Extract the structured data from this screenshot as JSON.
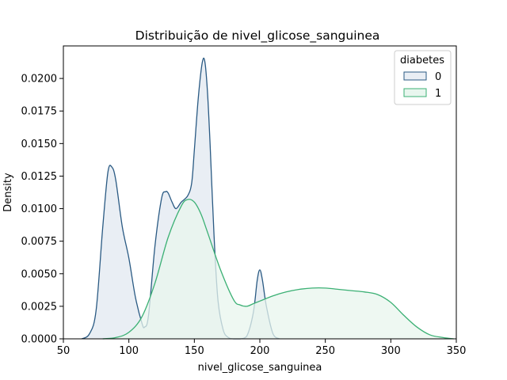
{
  "chart_data": {
    "type": "area",
    "title": "Distribuição de nivel_glicose_sanguinea",
    "xlabel": "nivel_glicose_sanguinea",
    "ylabel": "Density",
    "xlim": [
      50,
      350
    ],
    "ylim": [
      0,
      0.0225
    ],
    "xticks": [
      50,
      100,
      150,
      200,
      250,
      300,
      350
    ],
    "xtick_labels": [
      "50",
      "100",
      "150",
      "200",
      "250",
      "300",
      "350"
    ],
    "yticks": [
      0,
      0.0025,
      0.005,
      0.0075,
      0.01,
      0.0125,
      0.015,
      0.0175,
      0.02
    ],
    "ytick_labels": [
      "0.0000",
      "0.0025",
      "0.0050",
      "0.0075",
      "0.0100",
      "0.0125",
      "0.0150",
      "0.0175",
      "0.0200"
    ],
    "grid": false,
    "legend": {
      "title": "diabetes",
      "placement": "top-right"
    },
    "series": [
      {
        "name": "0",
        "color": "#2a5a83",
        "fill": "#e9eef4",
        "x": [
          64,
          70,
          75,
          80,
          84,
          87,
          90,
          95,
          100,
          105,
          110,
          112,
          115,
          120,
          125,
          128,
          130,
          133,
          136,
          140,
          145,
          148,
          150,
          153,
          156,
          158,
          160,
          162,
          165,
          168,
          172,
          176,
          180,
          185,
          190,
          195,
          198,
          200,
          202,
          205,
          210,
          215
        ],
        "y": [
          0,
          0.0004,
          0.0022,
          0.0085,
          0.0128,
          0.0132,
          0.0122,
          0.0086,
          0.0062,
          0.0032,
          0.0012,
          0.0009,
          0.0018,
          0.0072,
          0.0108,
          0.0113,
          0.0112,
          0.0105,
          0.01,
          0.0105,
          0.011,
          0.012,
          0.0145,
          0.0185,
          0.0212,
          0.0213,
          0.019,
          0.015,
          0.008,
          0.003,
          0.0007,
          0.0001,
          0,
          0,
          0.0002,
          0.002,
          0.0045,
          0.0053,
          0.0045,
          0.0025,
          0.0004,
          0
        ]
      },
      {
        "name": "1",
        "color": "#3bb074",
        "fill": "#e8f6ee",
        "x": [
          80,
          90,
          100,
          110,
          120,
          130,
          140,
          145,
          150,
          155,
          160,
          170,
          180,
          185,
          190,
          195,
          200,
          210,
          220,
          230,
          240,
          250,
          260,
          270,
          280,
          290,
          300,
          310,
          320,
          330,
          340,
          348
        ],
        "y": [
          0,
          0.0001,
          0.0005,
          0.0017,
          0.0043,
          0.0078,
          0.0102,
          0.0107,
          0.0105,
          0.0096,
          0.0082,
          0.0053,
          0.003,
          0.0026,
          0.0025,
          0.0027,
          0.0029,
          0.0033,
          0.0036,
          0.0038,
          0.0039,
          0.0039,
          0.0038,
          0.0037,
          0.0036,
          0.0034,
          0.0028,
          0.0018,
          0.0009,
          0.0003,
          0.0001,
          0
        ]
      }
    ]
  }
}
